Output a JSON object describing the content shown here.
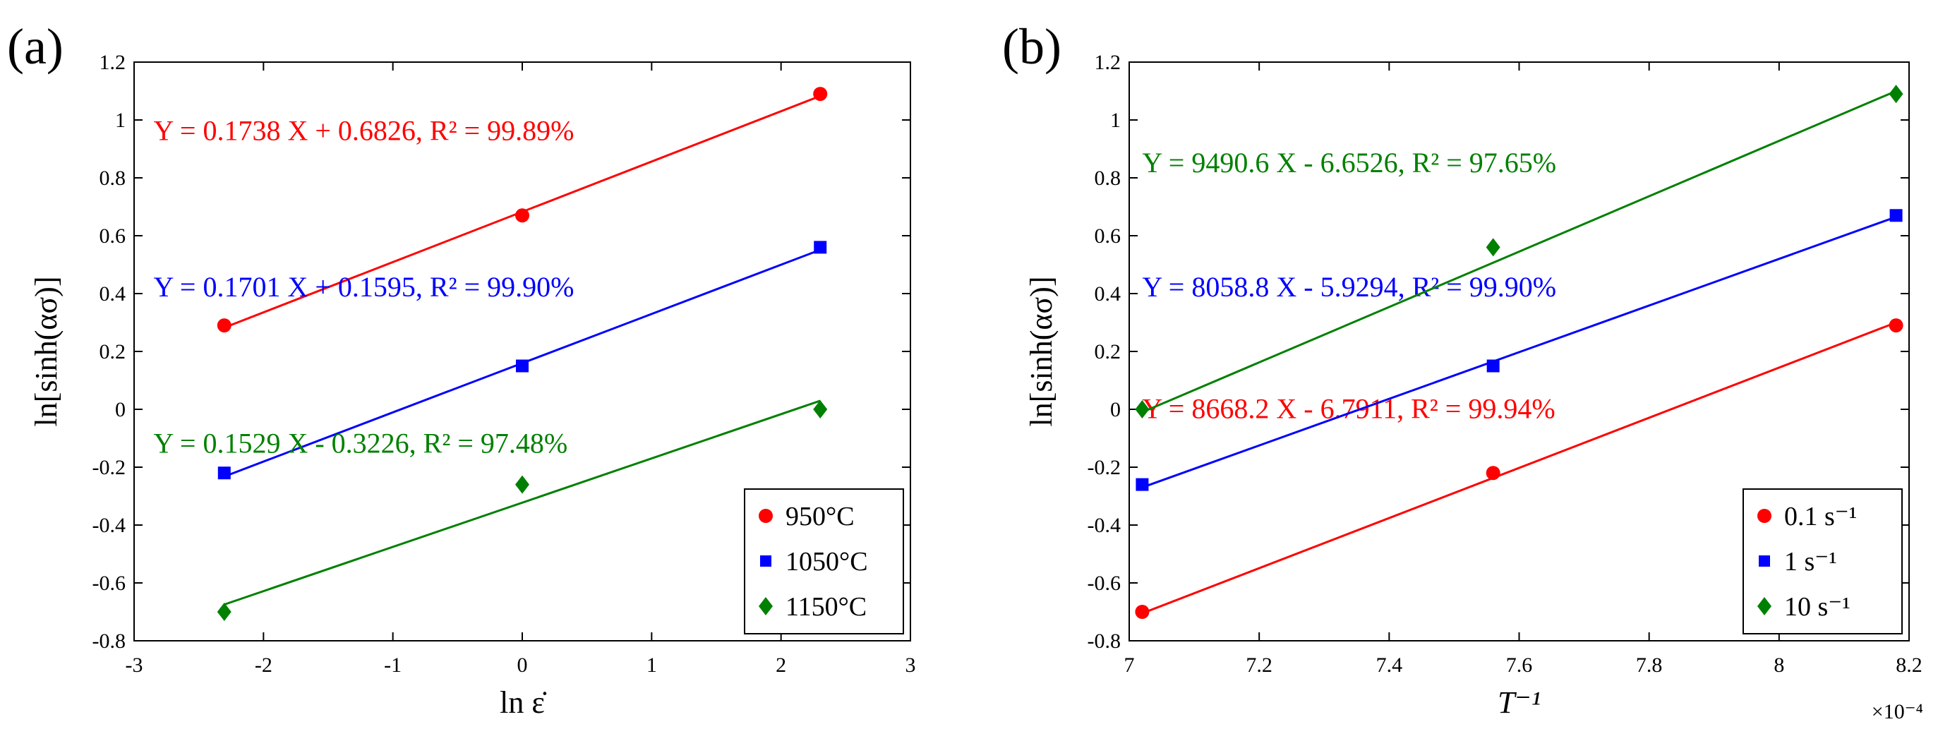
{
  "chart_data": [
    {
      "type": "scatter",
      "panel_label": "(a)",
      "xlabel": "ln ε̇",
      "ylabel": "ln[sinh(ασ)]",
      "xlim": [
        -3,
        3
      ],
      "ylim": [
        -0.8,
        1.2
      ],
      "xticks": [
        "-3",
        "-2",
        "-1",
        "0",
        "1",
        "2",
        "3"
      ],
      "yticks": [
        "-0.8",
        "-0.6",
        "-0.4",
        "-0.2",
        "0",
        "0.2",
        "0.4",
        "0.6",
        "0.8",
        "1",
        "1.2"
      ],
      "xtick_values": [
        -3,
        -2,
        -1,
        0,
        1,
        2,
        3
      ],
      "ytick_values": [
        -0.8,
        -0.6,
        -0.4,
        -0.2,
        0,
        0.2,
        0.4,
        0.6,
        0.8,
        1,
        1.2
      ],
      "legend_position": "bottom-right",
      "series": [
        {
          "name": "950°C",
          "color": "#ff0000",
          "marker": "circle",
          "x": [
            -2.303,
            0,
            2.303
          ],
          "y": [
            0.29,
            0.67,
            1.09
          ],
          "fit": {
            "slope": 0.1738,
            "intercept": 0.6826
          },
          "equation": "Y = 0.1738 X + 0.6826, R² = 99.89%",
          "equation_pos": [
            -2.85,
            0.93
          ]
        },
        {
          "name": "1050°C",
          "color": "#0000ff",
          "marker": "square",
          "x": [
            -2.303,
            0,
            2.303
          ],
          "y": [
            -0.22,
            0.15,
            0.56
          ],
          "fit": {
            "slope": 0.1701,
            "intercept": 0.1595
          },
          "equation": "Y = 0.1701 X + 0.1595, R² = 99.90%",
          "equation_pos": [
            -2.85,
            0.39
          ]
        },
        {
          "name": "1150°C",
          "color": "#008000",
          "marker": "diamond",
          "x": [
            -2.303,
            0,
            2.303
          ],
          "y": [
            -0.7,
            -0.26,
            0.0
          ],
          "fit": {
            "slope": 0.1529,
            "intercept": -0.3226
          },
          "equation": "Y = 0.1529 X - 0.3226, R² = 97.48%",
          "equation_pos": [
            -2.85,
            -0.15
          ]
        }
      ]
    },
    {
      "type": "scatter",
      "panel_label": "(b)",
      "xlabel": "T⁻¹",
      "ylabel": "ln[sinh(ασ)]",
      "x_multiplier": "×10⁻⁴",
      "xlim": [
        7,
        8.2
      ],
      "ylim": [
        -0.8,
        1.2
      ],
      "xticks": [
        "7",
        "7.2",
        "7.4",
        "7.6",
        "7.8",
        "8",
        "8.2"
      ],
      "yticks": [
        "-0.8",
        "-0.6",
        "-0.4",
        "-0.2",
        "0",
        "0.2",
        "0.4",
        "0.6",
        "0.8",
        "1",
        "1.2"
      ],
      "xtick_values": [
        7,
        7.2,
        7.4,
        7.6,
        7.8,
        8,
        8.2
      ],
      "ytick_values": [
        -0.8,
        -0.6,
        -0.4,
        -0.2,
        0,
        0.2,
        0.4,
        0.6,
        0.8,
        1,
        1.2
      ],
      "legend_position": "bottom-right",
      "series": [
        {
          "name": "0.1 s⁻¹",
          "color": "#ff0000",
          "marker": "circle",
          "x": [
            7.02,
            7.56,
            8.18
          ],
          "y": [
            -0.7,
            -0.22,
            0.29
          ],
          "fit_line": [
            [
              7.02,
              -0.705
            ],
            [
              8.18,
              0.3
            ]
          ],
          "equation": "Y = 8668.2 X - 6.7911, R² = 99.94%",
          "equation_pos": [
            7.02,
            -0.03
          ]
        },
        {
          "name": "1 s⁻¹",
          "color": "#0000ff",
          "marker": "square",
          "x": [
            7.02,
            7.56,
            8.18
          ],
          "y": [
            -0.26,
            0.15,
            0.67
          ],
          "fit_line": [
            [
              7.02,
              -0.27
            ],
            [
              8.18,
              0.665
            ]
          ],
          "equation": "Y = 8058.8 X - 5.9294, R² = 99.90%",
          "equation_pos": [
            7.02,
            0.39
          ]
        },
        {
          "name": "10 s⁻¹",
          "color": "#008000",
          "marker": "diamond",
          "x": [
            7.02,
            7.56,
            8.18
          ],
          "y": [
            0.0,
            0.56,
            1.09
          ],
          "fit_line": [
            [
              7.02,
              -0.01
            ],
            [
              8.18,
              1.1
            ]
          ],
          "equation": "Y = 9490.6 X - 6.6526, R² = 97.65%",
          "equation_pos": [
            7.02,
            0.82
          ]
        }
      ]
    }
  ]
}
